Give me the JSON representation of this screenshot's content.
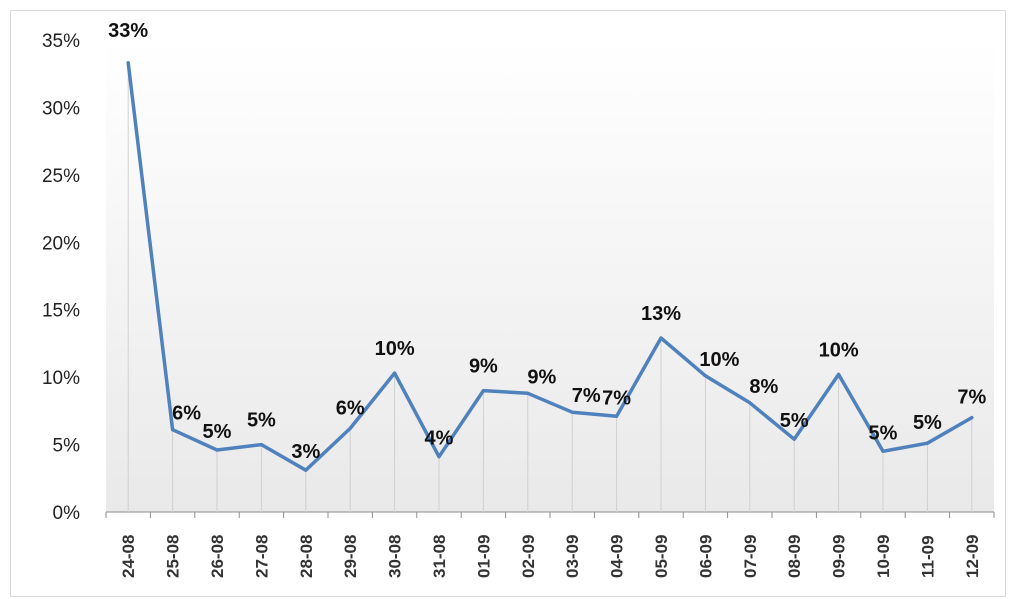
{
  "chart_data": {
    "type": "line",
    "title": "",
    "xlabel": "",
    "ylabel": "",
    "categories": [
      "24-08",
      "25-08",
      "26-08",
      "27-08",
      "28-08",
      "29-08",
      "30-08",
      "31-08",
      "01-09",
      "02-09",
      "03-09",
      "04-09",
      "05-09",
      "06-09",
      "07-09",
      "08-09",
      "09-09",
      "10-09",
      "11-09",
      "12-09"
    ],
    "series": [
      {
        "values": [
          33.3,
          6.1,
          4.6,
          5.0,
          3.1,
          6.2,
          10.3,
          4.1,
          9.0,
          8.8,
          7.4,
          7.1,
          12.9,
          10.1,
          8.1,
          5.4,
          10.2,
          4.5,
          5.1,
          7.0
        ],
        "labels": [
          "33%",
          "6%",
          "5%",
          "5%",
          "3%",
          "6%",
          "10%",
          "4%",
          "9%",
          "9%",
          "7%",
          "7%",
          "13%",
          "10%",
          "8%",
          "5%",
          "10%",
          "5%",
          "5%",
          "7%"
        ],
        "color": "#4f81bd"
      }
    ],
    "yticks": [
      "0%",
      "5%",
      "10%",
      "15%",
      "20%",
      "25%",
      "30%",
      "35%"
    ],
    "ylim": [
      0,
      35
    ],
    "grid": false,
    "drop_lines": true,
    "plot_background": "gradient-white-to-light-gray",
    "legend": "none"
  }
}
